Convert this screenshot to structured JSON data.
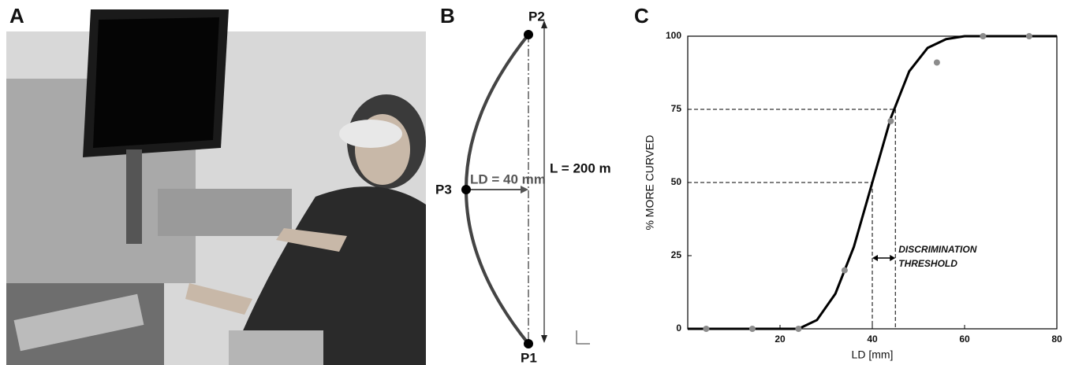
{
  "panel_labels": [
    "A",
    "B",
    "C"
  ],
  "diagram": {
    "p1": "P1",
    "p2": "P2",
    "p3": "P3",
    "ld": "LD = 40 mm",
    "l": "L = 200 m"
  },
  "chart_data": {
    "type": "scatter",
    "xlabel": "LD [mm]",
    "ylabel": "% MORE CURVED",
    "annotation": [
      "DISCRIMINATION",
      "THRESHOLD"
    ],
    "xlim": [
      0,
      80
    ],
    "xticks": [
      20,
      40,
      60,
      80
    ],
    "ylim": [
      0,
      100
    ],
    "yticks": [
      0,
      25,
      50,
      75,
      100
    ],
    "points": {
      "color": "#8c8c8c",
      "x": [
        4,
        14,
        24,
        34,
        44,
        54,
        64,
        74
      ],
      "values": [
        0,
        0,
        0,
        20,
        71,
        91,
        100,
        100
      ]
    },
    "fit": {
      "color": "#000000",
      "x": [
        0,
        20,
        24,
        28,
        32,
        36,
        40,
        44,
        48,
        52,
        56,
        60,
        80
      ],
      "values": [
        0,
        0,
        0,
        3,
        12,
        28,
        50,
        72,
        88,
        96,
        99,
        100,
        100
      ]
    },
    "thresholds": [
      {
        "x": 40,
        "y": 50
      },
      {
        "x": 45,
        "y": 75
      }
    ]
  }
}
